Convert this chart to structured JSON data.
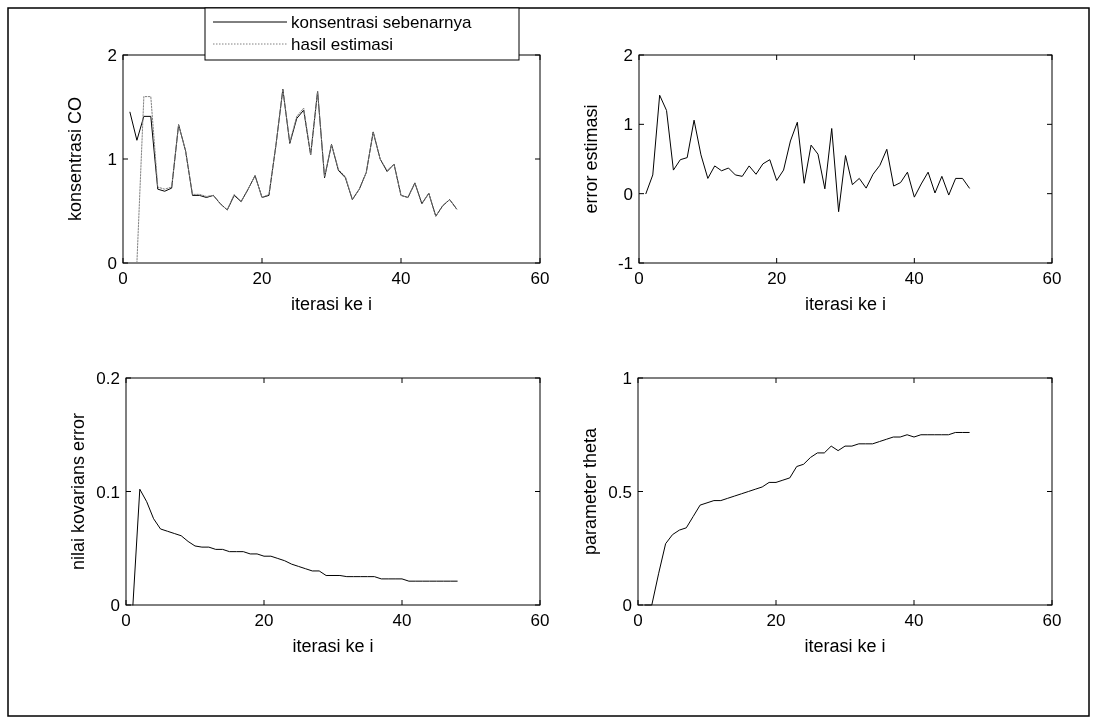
{
  "chart_data": [
    {
      "type": "line",
      "xlabel": "iterasi ke i",
      "ylabel": "konsentrasi CO",
      "xlim": [
        0,
        60
      ],
      "xticks": [
        0,
        20,
        40,
        60
      ],
      "ylim": [
        0,
        2
      ],
      "yticks": [
        0,
        1,
        2
      ],
      "legend": "top",
      "x": [
        1,
        2,
        3,
        4,
        5,
        6,
        7,
        8,
        9,
        10,
        11,
        12,
        13,
        14,
        15,
        16,
        17,
        18,
        19,
        20,
        21,
        22,
        23,
        24,
        25,
        26,
        27,
        28,
        29,
        30,
        31,
        32,
        33,
        34,
        35,
        36,
        37,
        38,
        39,
        40,
        41,
        42,
        43,
        44,
        45,
        46,
        47,
        48
      ],
      "series": [
        {
          "name": "konsentrasi sebenarnya",
          "color": "#000000",
          "line_style": "solid",
          "values": [
            1.45,
            1.18,
            1.41,
            1.41,
            0.71,
            0.69,
            0.72,
            1.33,
            1.08,
            0.65,
            0.65,
            0.63,
            0.65,
            0.57,
            0.51,
            0.65,
            0.59,
            0.71,
            0.84,
            0.63,
            0.65,
            1.13,
            1.67,
            1.15,
            1.39,
            1.47,
            1.04,
            1.65,
            0.82,
            1.14,
            0.89,
            0.82,
            0.61,
            0.71,
            0.87,
            1.26,
            1.0,
            0.88,
            0.95,
            0.65,
            0.63,
            0.77,
            0.57,
            0.67,
            0.45,
            0.55,
            0.61,
            0.52
          ]
        },
        {
          "name": "hasil estimasi",
          "color": "#808080",
          "line_style": "dotted",
          "values": [
            null,
            0,
            1.6,
            1.6,
            0.73,
            0.71,
            0.73,
            1.33,
            1.08,
            0.66,
            0.66,
            0.64,
            0.65,
            0.57,
            0.51,
            0.66,
            0.59,
            0.71,
            0.84,
            0.63,
            0.66,
            1.13,
            1.67,
            1.16,
            1.41,
            1.49,
            1.04,
            1.65,
            0.83,
            1.14,
            0.9,
            0.83,
            0.61,
            0.71,
            0.87,
            1.26,
            1.0,
            0.89,
            0.95,
            0.65,
            0.63,
            0.77,
            0.57,
            0.67,
            0.45,
            0.55,
            0.61,
            0.52
          ]
        }
      ]
    },
    {
      "type": "line",
      "xlabel": "iterasi ke i",
      "ylabel": "error estimasi",
      "xlim": [
        0,
        60
      ],
      "xticks": [
        0,
        20,
        40,
        60
      ],
      "ylim": [
        -1,
        2
      ],
      "yticks": [
        -1,
        0,
        1,
        2
      ],
      "x": [
        1,
        2,
        3,
        4,
        5,
        6,
        7,
        8,
        9,
        10,
        11,
        12,
        13,
        14,
        15,
        16,
        17,
        18,
        19,
        20,
        21,
        22,
        23,
        24,
        25,
        26,
        27,
        28,
        29,
        30,
        31,
        32,
        33,
        34,
        35,
        36,
        37,
        38,
        39,
        40,
        41,
        42,
        43,
        44,
        45,
        46,
        47,
        48
      ],
      "series": [
        {
          "color": "#000000",
          "line_style": "solid",
          "values": [
            0,
            0.27,
            1.42,
            1.2,
            0.34,
            0.49,
            0.52,
            1.06,
            0.56,
            0.22,
            0.4,
            0.33,
            0.37,
            0.27,
            0.25,
            0.4,
            0.28,
            0.43,
            0.49,
            0.19,
            0.34,
            0.76,
            1.03,
            0.15,
            0.7,
            0.57,
            0.07,
            0.94,
            -0.26,
            0.55,
            0.13,
            0.22,
            0.08,
            0.28,
            0.41,
            0.64,
            0.11,
            0.16,
            0.31,
            -0.05,
            0.14,
            0.31,
            0.01,
            0.25,
            -0.02,
            0.22,
            0.22,
            0.08
          ]
        }
      ]
    },
    {
      "type": "line",
      "xlabel": "iterasi ke i",
      "ylabel": "nilai kovarians error",
      "xlim": [
        0,
        60
      ],
      "xticks": [
        0,
        20,
        40,
        60
      ],
      "ylim": [
        0,
        0.2
      ],
      "yticks": [
        0,
        0.1,
        0.2
      ],
      "x": [
        1,
        2,
        3,
        4,
        5,
        6,
        7,
        8,
        9,
        10,
        11,
        12,
        13,
        14,
        15,
        16,
        17,
        18,
        19,
        20,
        21,
        22,
        23,
        24,
        25,
        26,
        27,
        28,
        29,
        30,
        31,
        32,
        33,
        34,
        35,
        36,
        37,
        38,
        39,
        40,
        41,
        42,
        43,
        44,
        45,
        46,
        47,
        48
      ],
      "series": [
        {
          "color": "#000000",
          "line_style": "solid",
          "values": [
            0,
            0.102,
            0.091,
            0.076,
            0.067,
            0.065,
            0.063,
            0.061,
            0.056,
            0.052,
            0.051,
            0.051,
            0.049,
            0.049,
            0.047,
            0.047,
            0.047,
            0.045,
            0.045,
            0.043,
            0.043,
            0.041,
            0.039,
            0.036,
            0.034,
            0.032,
            0.03,
            0.03,
            0.026,
            0.026,
            0.026,
            0.025,
            0.025,
            0.025,
            0.025,
            0.025,
            0.023,
            0.023,
            0.023,
            0.023,
            0.021,
            0.021,
            0.021,
            0.021,
            0.021,
            0.021,
            0.021,
            0.021
          ]
        }
      ]
    },
    {
      "type": "line",
      "xlabel": "iterasi ke i",
      "ylabel": "parameter theta",
      "xlim": [
        0,
        60
      ],
      "xticks": [
        0,
        20,
        40,
        60
      ],
      "ylim": [
        0,
        1
      ],
      "yticks": [
        0,
        0.5,
        1
      ],
      "x": [
        1,
        2,
        3,
        4,
        5,
        6,
        7,
        8,
        9,
        10,
        11,
        12,
        13,
        14,
        15,
        16,
        17,
        18,
        19,
        20,
        21,
        22,
        23,
        24,
        25,
        26,
        27,
        28,
        29,
        30,
        31,
        32,
        33,
        34,
        35,
        36,
        37,
        38,
        39,
        40,
        41,
        42,
        43,
        44,
        45,
        46,
        47,
        48
      ],
      "series": [
        {
          "color": "#000000",
          "line_style": "solid",
          "values": [
            0,
            0,
            0.14,
            0.27,
            0.31,
            0.33,
            0.34,
            0.39,
            0.44,
            0.45,
            0.46,
            0.46,
            0.47,
            0.48,
            0.49,
            0.5,
            0.51,
            0.52,
            0.54,
            0.54,
            0.55,
            0.56,
            0.61,
            0.62,
            0.65,
            0.67,
            0.67,
            0.7,
            0.68,
            0.7,
            0.7,
            0.71,
            0.71,
            0.71,
            0.72,
            0.73,
            0.74,
            0.74,
            0.75,
            0.74,
            0.75,
            0.75,
            0.75,
            0.75,
            0.75,
            0.76,
            0.76,
            0.76
          ]
        }
      ]
    }
  ]
}
